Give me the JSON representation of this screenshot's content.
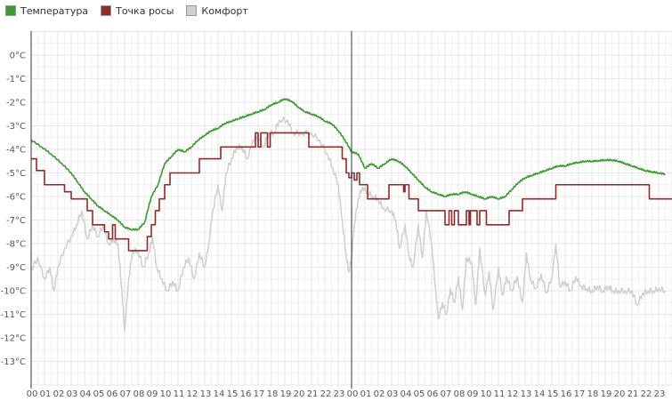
{
  "chart_data": {
    "type": "line",
    "ylim": [
      -14,
      1
    ],
    "y_ticks": [
      0,
      -1,
      -2,
      -3,
      -4,
      -5,
      -6,
      -7,
      -8,
      -9,
      -10,
      -11,
      -12,
      -13
    ],
    "y_tick_labels": [
      "0°C",
      "-1°C",
      "-2°C",
      "-3°C",
      "-4°C",
      "-5°C",
      "-6°C",
      "-7°C",
      "-8°C",
      "-9°C",
      "-10°C",
      "-11°C",
      "-12°C",
      "-13°C"
    ],
    "x_tick_labels": [
      "00",
      "01",
      "02",
      "03",
      "04",
      "05",
      "06",
      "07",
      "08",
      "09",
      "10",
      "11",
      "12",
      "13",
      "14",
      "15",
      "16",
      "17",
      "18",
      "19",
      "20",
      "21",
      "22",
      "23",
      "00",
      "01",
      "02",
      "03",
      "04",
      "05",
      "06",
      "07",
      "08",
      "09",
      "10",
      "11",
      "12",
      "13",
      "14",
      "15",
      "16",
      "17",
      "18",
      "19",
      "20",
      "21",
      "22",
      "23"
    ],
    "xlim": [
      0,
      48
    ],
    "day_divider_at": 24,
    "grid": true,
    "legend_position": "top-left",
    "series": [
      {
        "name": "Температура",
        "color": "#3a9a2e",
        "style": "smooth",
        "points": [
          [
            0,
            -3.6
          ],
          [
            0.8,
            -3.9
          ],
          [
            1.5,
            -4.2
          ],
          [
            2.3,
            -4.6
          ],
          [
            3,
            -5
          ],
          [
            3.5,
            -5.4
          ],
          [
            4,
            -5.8
          ],
          [
            4.5,
            -6.1
          ],
          [
            5,
            -6.4
          ],
          [
            5.5,
            -6.6
          ],
          [
            6,
            -6.8
          ],
          [
            6.5,
            -7
          ],
          [
            7,
            -7.3
          ],
          [
            7.5,
            -7.4
          ],
          [
            8,
            -7.4
          ],
          [
            8.5,
            -7.1
          ],
          [
            9,
            -6
          ],
          [
            9.5,
            -5.5
          ],
          [
            10,
            -4.6
          ],
          [
            10.5,
            -4.3
          ],
          [
            11,
            -4
          ],
          [
            11.5,
            -4.1
          ],
          [
            12,
            -3.9
          ],
          [
            12.5,
            -3.6
          ],
          [
            13,
            -3.4
          ],
          [
            13.5,
            -3.2
          ],
          [
            14,
            -3.1
          ],
          [
            14.5,
            -2.9
          ],
          [
            15,
            -2.8
          ],
          [
            15.5,
            -2.7
          ],
          [
            16,
            -2.6
          ],
          [
            16.5,
            -2.5
          ],
          [
            17,
            -2.4
          ],
          [
            17.5,
            -2.3
          ],
          [
            18,
            -2.1
          ],
          [
            18.5,
            -2
          ],
          [
            19,
            -1.85
          ],
          [
            19.5,
            -1.95
          ],
          [
            20,
            -2.2
          ],
          [
            20.5,
            -2.4
          ],
          [
            21,
            -2.5
          ],
          [
            21.5,
            -2.6
          ],
          [
            22,
            -2.8
          ],
          [
            22.5,
            -2.9
          ],
          [
            23,
            -3.2
          ],
          [
            23.5,
            -3.6
          ],
          [
            24,
            -4.1
          ],
          [
            24.5,
            -4.2
          ],
          [
            25,
            -4.8
          ],
          [
            25.5,
            -4.6
          ],
          [
            26,
            -4.8
          ],
          [
            26.5,
            -4.6
          ],
          [
            27,
            -4.4
          ],
          [
            27.5,
            -4.5
          ],
          [
            28,
            -4.7
          ],
          [
            28.5,
            -5
          ],
          [
            29,
            -5.3
          ],
          [
            29.5,
            -5.6
          ],
          [
            30,
            -5.8
          ],
          [
            30.5,
            -5.9
          ],
          [
            31,
            -6
          ],
          [
            31.5,
            -5.9
          ],
          [
            32,
            -5.9
          ],
          [
            32.5,
            -5.8
          ],
          [
            33,
            -5.9
          ],
          [
            33.5,
            -6
          ],
          [
            34,
            -6.1
          ],
          [
            34.5,
            -6
          ],
          [
            35,
            -6.1
          ],
          [
            35.5,
            -6
          ],
          [
            36,
            -5.7
          ],
          [
            36.5,
            -5.4
          ],
          [
            37,
            -5.2
          ],
          [
            37.5,
            -5.1
          ],
          [
            38,
            -5
          ],
          [
            38.5,
            -4.9
          ],
          [
            39,
            -4.8
          ],
          [
            39.5,
            -4.7
          ],
          [
            40,
            -4.7
          ],
          [
            40.5,
            -4.6
          ],
          [
            41,
            -4.55
          ],
          [
            41.5,
            -4.5
          ],
          [
            42,
            -4.5
          ],
          [
            42.5,
            -4.48
          ],
          [
            43,
            -4.45
          ],
          [
            43.5,
            -4.45
          ],
          [
            44,
            -4.5
          ],
          [
            44.5,
            -4.6
          ],
          [
            45,
            -4.7
          ],
          [
            45.5,
            -4.8
          ],
          [
            46,
            -4.9
          ],
          [
            46.5,
            -4.95
          ],
          [
            47,
            -5
          ],
          [
            47.5,
            -5.05
          ]
        ]
      },
      {
        "name": "Точка росы",
        "color": "#8e2b2b",
        "style": "step",
        "points": [
          [
            0,
            -4.4
          ],
          [
            0.4,
            -4.9
          ],
          [
            1,
            -5.5
          ],
          [
            2.5,
            -5.8
          ],
          [
            3,
            -6.1
          ],
          [
            4.2,
            -6.6
          ],
          [
            4.6,
            -7.2
          ],
          [
            5.5,
            -7.5
          ],
          [
            5.8,
            -7.8
          ],
          [
            6.1,
            -7.2
          ],
          [
            6.3,
            -7.8
          ],
          [
            7,
            -7.8
          ],
          [
            7.3,
            -8.3
          ],
          [
            8.7,
            -7.7
          ],
          [
            9,
            -7.2
          ],
          [
            9.3,
            -6.6
          ],
          [
            9.6,
            -6.1
          ],
          [
            10,
            -5.5
          ],
          [
            10.4,
            -5
          ],
          [
            12,
            -5
          ],
          [
            12.6,
            -4.4
          ],
          [
            13.5,
            -4.4
          ],
          [
            14.2,
            -3.9
          ],
          [
            16.5,
            -3.9
          ],
          [
            16.8,
            -3.3
          ],
          [
            17,
            -3.9
          ],
          [
            17.2,
            -3.3
          ],
          [
            17.5,
            -3.3
          ],
          [
            17.7,
            -3.9
          ],
          [
            17.9,
            -3.3
          ],
          [
            20.5,
            -3.3
          ],
          [
            20.8,
            -3.9
          ],
          [
            23,
            -3.9
          ],
          [
            23.3,
            -4.4
          ],
          [
            23.6,
            -5
          ],
          [
            23.8,
            -5.2
          ],
          [
            24,
            -5
          ],
          [
            24.2,
            -5.3
          ],
          [
            24.4,
            -5
          ],
          [
            24.6,
            -5.5
          ],
          [
            24.9,
            -5.5
          ],
          [
            25.2,
            -6.1
          ],
          [
            26.8,
            -5.5
          ],
          [
            27.6,
            -5.5
          ],
          [
            27.9,
            -5.8
          ],
          [
            28,
            -5.5
          ],
          [
            28.3,
            -6.1
          ],
          [
            29,
            -6.6
          ],
          [
            30,
            -6.6
          ],
          [
            30.5,
            -6.6
          ],
          [
            31,
            -7.2
          ],
          [
            31.3,
            -6.6
          ],
          [
            31.5,
            -7.2
          ],
          [
            31.7,
            -6.6
          ],
          [
            32,
            -7.2
          ],
          [
            32.6,
            -6.6
          ],
          [
            32.8,
            -7.2
          ],
          [
            32.9,
            -6.6
          ],
          [
            33.1,
            -6.6
          ],
          [
            33.4,
            -7.2
          ],
          [
            33.6,
            -6.6
          ],
          [
            34.1,
            -7.2
          ],
          [
            35.5,
            -7.2
          ],
          [
            35.8,
            -6.6
          ],
          [
            36.5,
            -6.6
          ],
          [
            36.8,
            -6.1
          ],
          [
            39,
            -6.1
          ],
          [
            39.3,
            -5.5
          ],
          [
            46,
            -5.5
          ],
          [
            46.3,
            -6.1
          ],
          [
            47.5,
            -6.1
          ]
        ]
      },
      {
        "name": "Комфорт",
        "color": "#cfcfcf",
        "style": "noisy",
        "points": [
          [
            0,
            -9.1
          ],
          [
            0.5,
            -8.6
          ],
          [
            1,
            -9.5
          ],
          [
            1.4,
            -9
          ],
          [
            1.7,
            -10
          ],
          [
            2,
            -9
          ],
          [
            2.5,
            -8.2
          ],
          [
            3,
            -7.7
          ],
          [
            3.4,
            -7.2
          ],
          [
            3.8,
            -6.6
          ],
          [
            4.2,
            -7.8
          ],
          [
            4.6,
            -7.2
          ],
          [
            5,
            -7.7
          ],
          [
            5.4,
            -7.2
          ],
          [
            5.8,
            -8
          ],
          [
            6.2,
            -7.8
          ],
          [
            6.5,
            -8
          ],
          [
            6.8,
            -10
          ],
          [
            7,
            -11.7
          ],
          [
            7.3,
            -9.5
          ],
          [
            7.6,
            -8.3
          ],
          [
            8,
            -8.3
          ],
          [
            8.4,
            -9
          ],
          [
            8.8,
            -8.4
          ],
          [
            9.1,
            -7.7
          ],
          [
            9.4,
            -9
          ],
          [
            9.8,
            -9.5
          ],
          [
            10.2,
            -10
          ],
          [
            10.6,
            -9.6
          ],
          [
            11,
            -10
          ],
          [
            11.4,
            -9
          ],
          [
            11.8,
            -8.6
          ],
          [
            12.2,
            -9.5
          ],
          [
            12.6,
            -8.4
          ],
          [
            13,
            -9
          ],
          [
            13.3,
            -8
          ],
          [
            13.6,
            -6.6
          ],
          [
            14,
            -5.5
          ],
          [
            14.3,
            -6.6
          ],
          [
            14.6,
            -5
          ],
          [
            15,
            -4.4
          ],
          [
            15.4,
            -3.9
          ],
          [
            15.8,
            -3.9
          ],
          [
            16.2,
            -4.4
          ],
          [
            16.6,
            -3.6
          ],
          [
            17,
            -3.4
          ],
          [
            17.4,
            -3.9
          ],
          [
            17.8,
            -3.3
          ],
          [
            18.2,
            -3.3
          ],
          [
            18.6,
            -2.75
          ],
          [
            19.2,
            -2.75
          ],
          [
            19.6,
            -3.3
          ],
          [
            20.2,
            -3.3
          ],
          [
            21,
            -3.3
          ],
          [
            21.6,
            -3.6
          ],
          [
            22.2,
            -4.2
          ],
          [
            22.6,
            -4.8
          ],
          [
            23,
            -5.5
          ],
          [
            23.3,
            -7
          ],
          [
            23.6,
            -8.5
          ],
          [
            23.8,
            -9.2
          ],
          [
            24,
            -8.6
          ],
          [
            24.2,
            -7.2
          ],
          [
            24.5,
            -6.1
          ],
          [
            24.8,
            -5.6
          ],
          [
            25.2,
            -5.8
          ],
          [
            25.6,
            -6
          ],
          [
            26,
            -6.1
          ],
          [
            26.4,
            -6.5
          ],
          [
            27,
            -6.6
          ],
          [
            27.3,
            -7
          ],
          [
            27.6,
            -8.2
          ],
          [
            28,
            -7.2
          ],
          [
            28.3,
            -8.5
          ],
          [
            28.6,
            -9
          ],
          [
            29,
            -7.2
          ],
          [
            29.3,
            -8.6
          ],
          [
            29.6,
            -6.6
          ],
          [
            30,
            -8
          ],
          [
            30.3,
            -10
          ],
          [
            30.5,
            -11.2
          ],
          [
            30.8,
            -10.5
          ],
          [
            31.1,
            -11
          ],
          [
            31.4,
            -9.9
          ],
          [
            31.7,
            -10.5
          ],
          [
            32,
            -9.4
          ],
          [
            32.3,
            -10.8
          ],
          [
            32.6,
            -8.6
          ],
          [
            33,
            -8.8
          ],
          [
            33.3,
            -10.6
          ],
          [
            33.6,
            -8.2
          ],
          [
            34,
            -10.2
          ],
          [
            34.3,
            -9.2
          ],
          [
            34.6,
            -10.8
          ],
          [
            35,
            -9
          ],
          [
            35.3,
            -10.2
          ],
          [
            35.6,
            -9.4
          ],
          [
            36,
            -10
          ],
          [
            36.4,
            -9.4
          ],
          [
            36.8,
            -10.5
          ],
          [
            37.1,
            -8.4
          ],
          [
            37.4,
            -9.5
          ],
          [
            37.8,
            -9.9
          ],
          [
            38.2,
            -9.3
          ],
          [
            38.6,
            -10.1
          ],
          [
            39,
            -9.4
          ],
          [
            39.3,
            -8
          ],
          [
            39.6,
            -9.8
          ],
          [
            40,
            -9.6
          ],
          [
            40.4,
            -10
          ],
          [
            40.8,
            -9.4
          ],
          [
            41.2,
            -9.8
          ],
          [
            41.6,
            -9.9
          ],
          [
            42,
            -10
          ],
          [
            42.4,
            -9.8
          ],
          [
            42.8,
            -10
          ],
          [
            43.2,
            -9.8
          ],
          [
            43.6,
            -10
          ],
          [
            44,
            -10
          ],
          [
            44.5,
            -10
          ],
          [
            45,
            -10
          ],
          [
            45.4,
            -10.6
          ],
          [
            45.8,
            -10.1
          ],
          [
            46.2,
            -10
          ],
          [
            46.6,
            -10
          ],
          [
            47,
            -9.9
          ],
          [
            47.5,
            -10
          ]
        ]
      }
    ]
  }
}
